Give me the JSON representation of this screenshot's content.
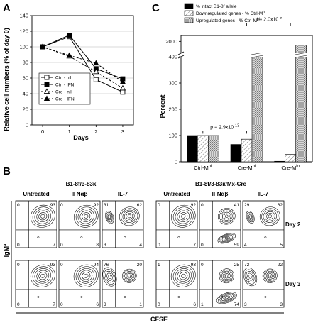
{
  "panels": {
    "a": {
      "letter": "A"
    },
    "b": {
      "letter": "B"
    },
    "c": {
      "letter": "C"
    }
  },
  "chart_data": [
    {
      "id": "A",
      "type": "line",
      "xlabel": "Days",
      "ylabel": "Relative cell numbers (% of day 0)",
      "x": [
        0,
        1,
        2,
        3
      ],
      "xlim": [
        -0.4,
        3.4
      ],
      "ylim": [
        0,
        140
      ],
      "yticks": [
        0,
        20,
        40,
        60,
        80,
        100,
        120,
        140
      ],
      "grid": true,
      "legend_position": "lower-left",
      "series": [
        {
          "name": "Ctrl - nil",
          "marker": "square-open",
          "dash": "solid",
          "values": [
            100,
            113,
            58,
            42
          ]
        },
        {
          "name": "Ctrl - IFN",
          "marker": "square-filled",
          "dash": "solid",
          "values": [
            100,
            115,
            72,
            59
          ]
        },
        {
          "name": "Cre - nil",
          "marker": "triangle-open",
          "dash": "dashed",
          "values": [
            100,
            88,
            68,
            47
          ]
        },
        {
          "name": "Cre - IFN",
          "marker": "triangle-filled",
          "dash": "dashed",
          "values": [
            100,
            89,
            79,
            55
          ]
        }
      ]
    },
    {
      "id": "C",
      "type": "bar",
      "ylabel": "Percent",
      "categories": [
        "Ctrl-Mhi",
        "Cre-Mhi",
        "Cre-Mlo"
      ],
      "category_labels": [
        {
          "base": "Ctrl-M",
          "sup": "hi"
        },
        {
          "base": "Cre-M",
          "sup": "hi"
        },
        {
          "base": "Cre-M",
          "sup": "lo"
        }
      ],
      "y_axis_break": true,
      "lower_ylim": [
        0,
        400
      ],
      "lower_yticks": [
        0,
        100,
        200,
        300,
        400
      ],
      "upper_ylim": [
        1800,
        2100
      ],
      "upper_yticks": [
        2000
      ],
      "legend_position": "top",
      "series": [
        {
          "name": "% intact B1-8f allele",
          "pattern": "black",
          "values": [
            100,
            66,
            2
          ],
          "errors": [
            0,
            14,
            0
          ]
        },
        {
          "name": "Downregulated genes - % Ctrl-M",
          "name_sup": "hi",
          "pattern": "hatched",
          "values": [
            100,
            86,
            28
          ]
        },
        {
          "name": "Upregulated genes - % Ctrl-M",
          "name_sup": "hi",
          "pattern": "dotted",
          "values": [
            100,
            412,
            1940
          ]
        }
      ],
      "annotations": [
        {
          "text": "p = 2.9x10",
          "sup": "-13",
          "between": [
            "Ctrl-Mhi",
            "Cre-Mhi"
          ]
        },
        {
          "text": "p = 2.0x10",
          "sup": "-5",
          "between": [
            "Cre-Mhi",
            "Cre-Mlo"
          ]
        }
      ]
    },
    {
      "id": "B",
      "type": "heatmap",
      "subtype": "contour-plot-grid",
      "xlabel": "CFSE",
      "ylabel": "IgM",
      "ylabel_sup": "a",
      "groups": [
        {
          "title": "B1-8f/3-83κ",
          "conditions": [
            "Untreated",
            "IFNαβ",
            "IL-7"
          ]
        },
        {
          "title": "B1-8f/3-83κ/Mx-Cre",
          "conditions": [
            "Untreated",
            "IFNαβ",
            "IL-7"
          ]
        }
      ],
      "rows": [
        "Day 2",
        "Day 3"
      ],
      "quadrants": {
        "day2": [
          {
            "ul": 0,
            "ur": 93,
            "ll": 0,
            "lr": 7
          },
          {
            "ul": 0,
            "ur": 92,
            "ll": 0,
            "lr": 8
          },
          {
            "ul": 31,
            "ur": 62,
            "ll": 3,
            "lr": 4
          },
          {
            "ul": 0,
            "ur": 92,
            "ll": 0,
            "lr": 7
          },
          {
            "ul": 0,
            "ur": 41,
            "ll": 0,
            "lr": 59
          },
          {
            "ul": 29,
            "ur": 62,
            "ll": 4,
            "lr": 5
          }
        ],
        "day3": [
          {
            "ul": 0,
            "ur": 93,
            "ll": 0,
            "lr": 7
          },
          {
            "ul": 0,
            "ur": 94,
            "ll": 0,
            "lr": 6
          },
          {
            "ul": 76,
            "ur": 20,
            "ll": 3,
            "lr": 1
          },
          {
            "ul": 1,
            "ur": 93,
            "ll": 0,
            "lr": 6
          },
          {
            "ul": 0,
            "ur": 25,
            "ll": 1,
            "lr": 74
          },
          {
            "ul": 72,
            "ur": 22,
            "ll": 3,
            "lr": 3
          }
        ]
      }
    }
  ]
}
